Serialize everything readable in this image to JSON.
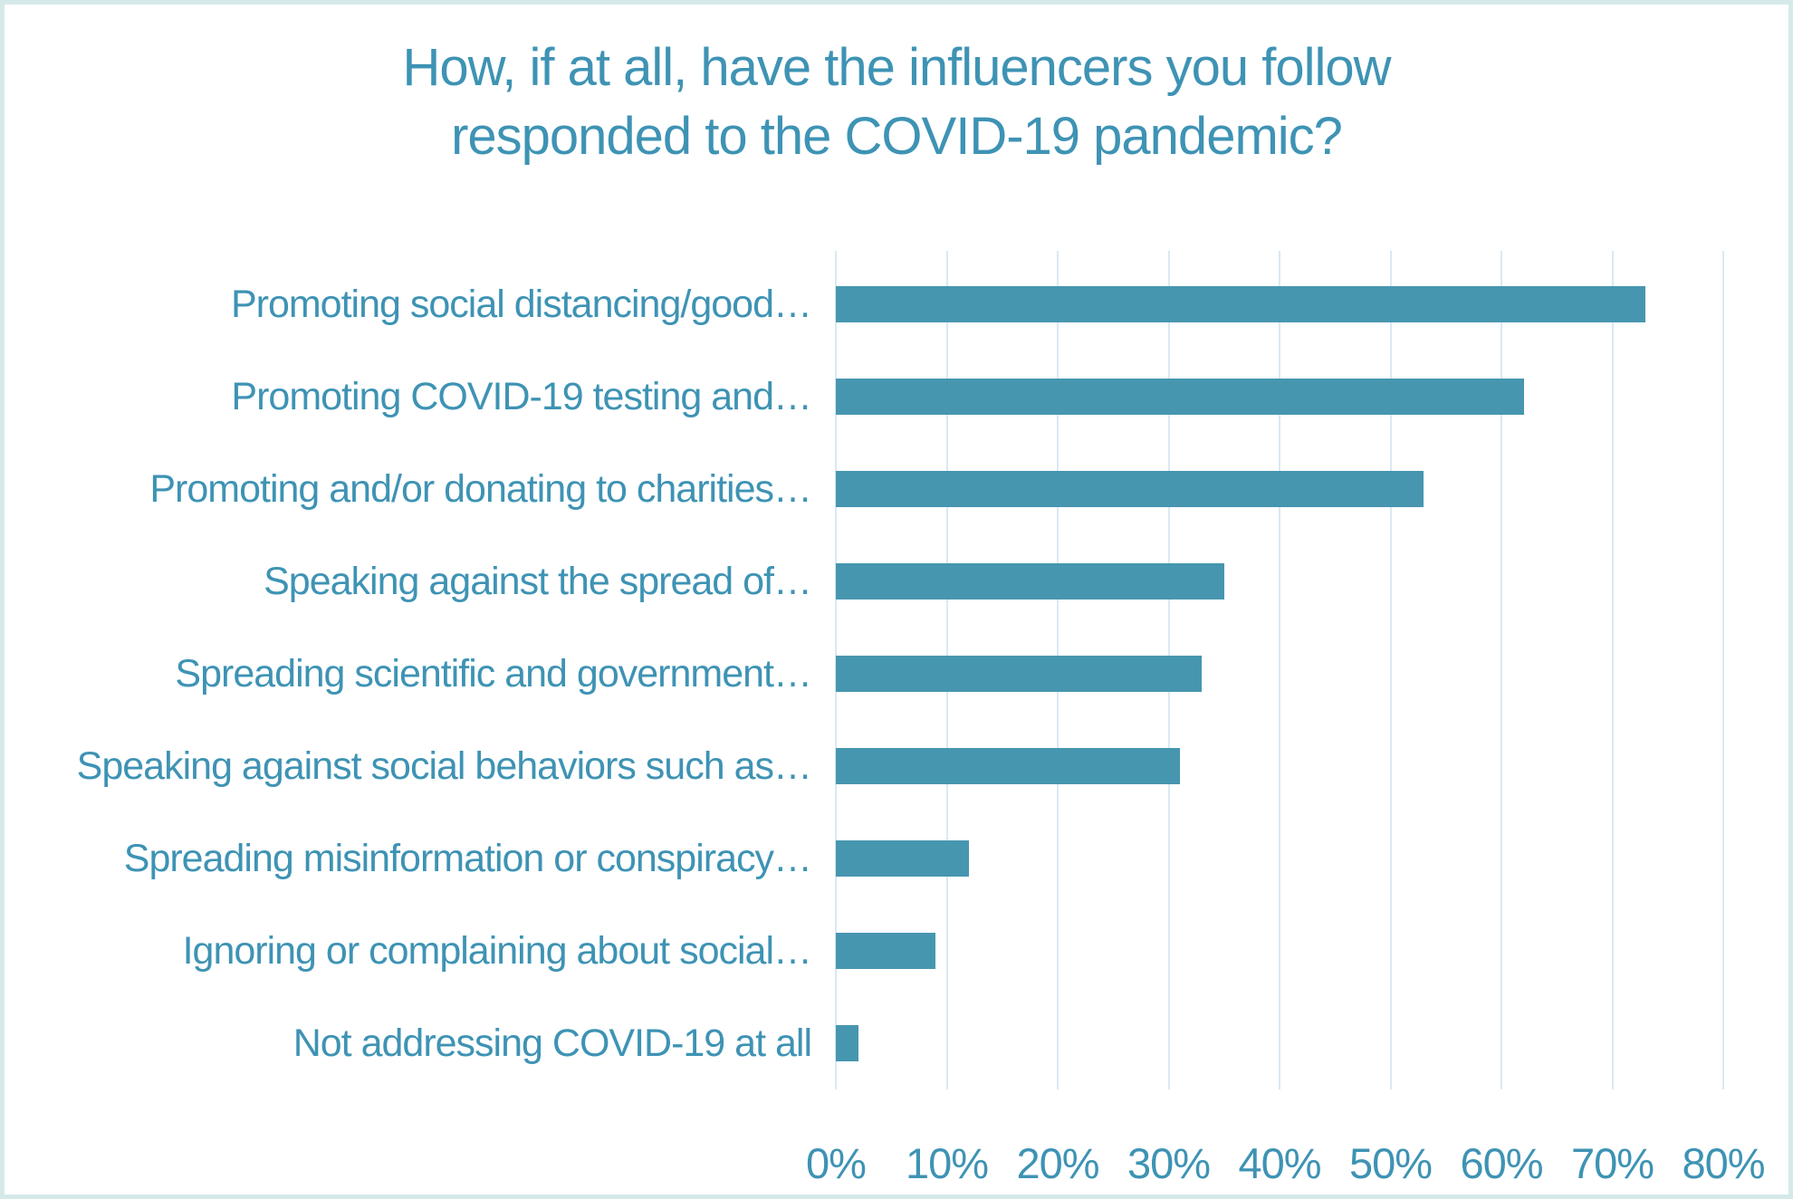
{
  "chart_data": {
    "type": "bar",
    "orientation": "horizontal",
    "title": "How, if at all, have the influencers you follow responded to the COVID-19 pandemic?",
    "title_lines": [
      "How, if at all, have the influencers you follow",
      "responded to the COVID-19 pandemic?"
    ],
    "categories": [
      "Promoting social distancing/good…",
      "Promoting COVID-19 testing and…",
      "Promoting and/or donating to charities…",
      "Speaking against the spread of…",
      "Spreading scientific and government…",
      "Speaking against social behaviors such as…",
      "Spreading misinformation or conspiracy…",
      "Ignoring or complaining about social…",
      "Not addressing COVID-19 at all"
    ],
    "values": [
      73,
      62,
      53,
      35,
      33,
      31,
      12,
      9,
      2
    ],
    "value_unit": "%",
    "xlabel": "",
    "ylabel": "",
    "xlim": [
      0,
      80
    ],
    "x_tick_labels": [
      "0%",
      "10%",
      "20%",
      "30%",
      "40%",
      "50%",
      "60%",
      "70%",
      "80%"
    ],
    "grid": "vertical-only",
    "legend": "none",
    "colors": {
      "bar": "#4696B0",
      "text": "#3E93B4",
      "gridline": "#D9E9F2",
      "frame_border": "#D6E9E9",
      "background": "#FFFFFF"
    }
  }
}
